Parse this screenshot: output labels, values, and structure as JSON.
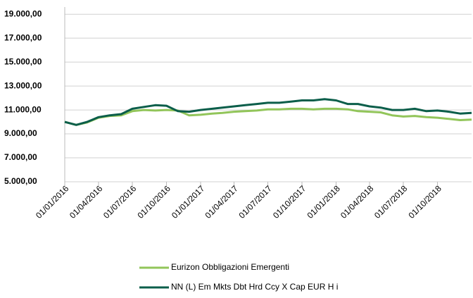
{
  "chart_data": {
    "type": "line",
    "x": [
      "2016-01-01",
      "2016-02-01",
      "2016-03-01",
      "2016-04-01",
      "2016-05-01",
      "2016-06-01",
      "2016-07-01",
      "2016-08-01",
      "2016-09-01",
      "2016-10-01",
      "2016-11-01",
      "2016-12-01",
      "2017-01-01",
      "2017-02-01",
      "2017-03-01",
      "2017-04-01",
      "2017-05-01",
      "2017-06-01",
      "2017-07-01",
      "2017-08-01",
      "2017-09-01",
      "2017-10-01",
      "2017-11-01",
      "2017-12-01",
      "2018-01-01",
      "2018-02-01",
      "2018-03-01",
      "2018-04-01",
      "2018-05-01",
      "2018-06-01",
      "2018-07-01",
      "2018-08-01",
      "2018-09-01",
      "2018-10-01",
      "2018-11-01",
      "2018-12-01",
      "2019-01-01"
    ],
    "series": [
      {
        "name": "Eurizon Obbligazioni Emergenti",
        "color": "#92c55a",
        "values": [
          10000,
          9750,
          9950,
          10350,
          10500,
          10550,
          10900,
          11000,
          10950,
          11000,
          10950,
          10550,
          10600,
          10700,
          10750,
          10850,
          10900,
          10950,
          11050,
          11050,
          11100,
          11100,
          11050,
          11100,
          11100,
          11050,
          10900,
          10850,
          10800,
          10550,
          10450,
          10500,
          10400,
          10350,
          10250,
          10150,
          10200
        ]
      },
      {
        "name": "NN (L) Em Mkts Dbt Hrd Ccy X Cap EUR H i",
        "color": "#0b5e4a",
        "values": [
          10000,
          9750,
          10000,
          10400,
          10550,
          10650,
          11100,
          11250,
          11400,
          11350,
          10900,
          10850,
          11000,
          11100,
          11200,
          11300,
          11400,
          11500,
          11600,
          11600,
          11700,
          11800,
          11800,
          11900,
          11800,
          11500,
          11500,
          11300,
          11200,
          11000,
          11000,
          11100,
          10900,
          10950,
          10850,
          10700,
          10750
        ]
      }
    ],
    "xlim": [
      "2016-01-01",
      "2019-01-01"
    ],
    "xticks": [
      {
        "value": "2016-01-01",
        "label": "01/01/2016"
      },
      {
        "value": "2016-04-01",
        "label": "01/04/2016"
      },
      {
        "value": "2016-07-01",
        "label": "01/07/2016"
      },
      {
        "value": "2016-10-01",
        "label": "01/10/2016"
      },
      {
        "value": "2017-01-01",
        "label": "01/01/2017"
      },
      {
        "value": "2017-04-01",
        "label": "01/04/2017"
      },
      {
        "value": "2017-07-01",
        "label": "01/07/2017"
      },
      {
        "value": "2017-10-01",
        "label": "01/10/2017"
      },
      {
        "value": "2018-01-01",
        "label": "01/01/2018"
      },
      {
        "value": "2018-04-01",
        "label": "01/04/2018"
      },
      {
        "value": "2018-07-01",
        "label": "01/07/2018"
      },
      {
        "value": "2018-10-01",
        "label": "01/10/2018"
      }
    ],
    "ylim": [
      5000,
      19600
    ],
    "yticks": [
      {
        "value": 5000,
        "label": "5.000,00"
      },
      {
        "value": 7000,
        "label": "7.000,00"
      },
      {
        "value": 9000,
        "label": "9.000,00"
      },
      {
        "value": 11000,
        "label": "11.000,00"
      },
      {
        "value": 13000,
        "label": "13.000,00"
      },
      {
        "value": 15000,
        "label": "15.000,00"
      },
      {
        "value": 17000,
        "label": "17.000,00"
      },
      {
        "value": 19000,
        "label": "19.000,00"
      }
    ],
    "grid": true,
    "legend": "bottom"
  }
}
